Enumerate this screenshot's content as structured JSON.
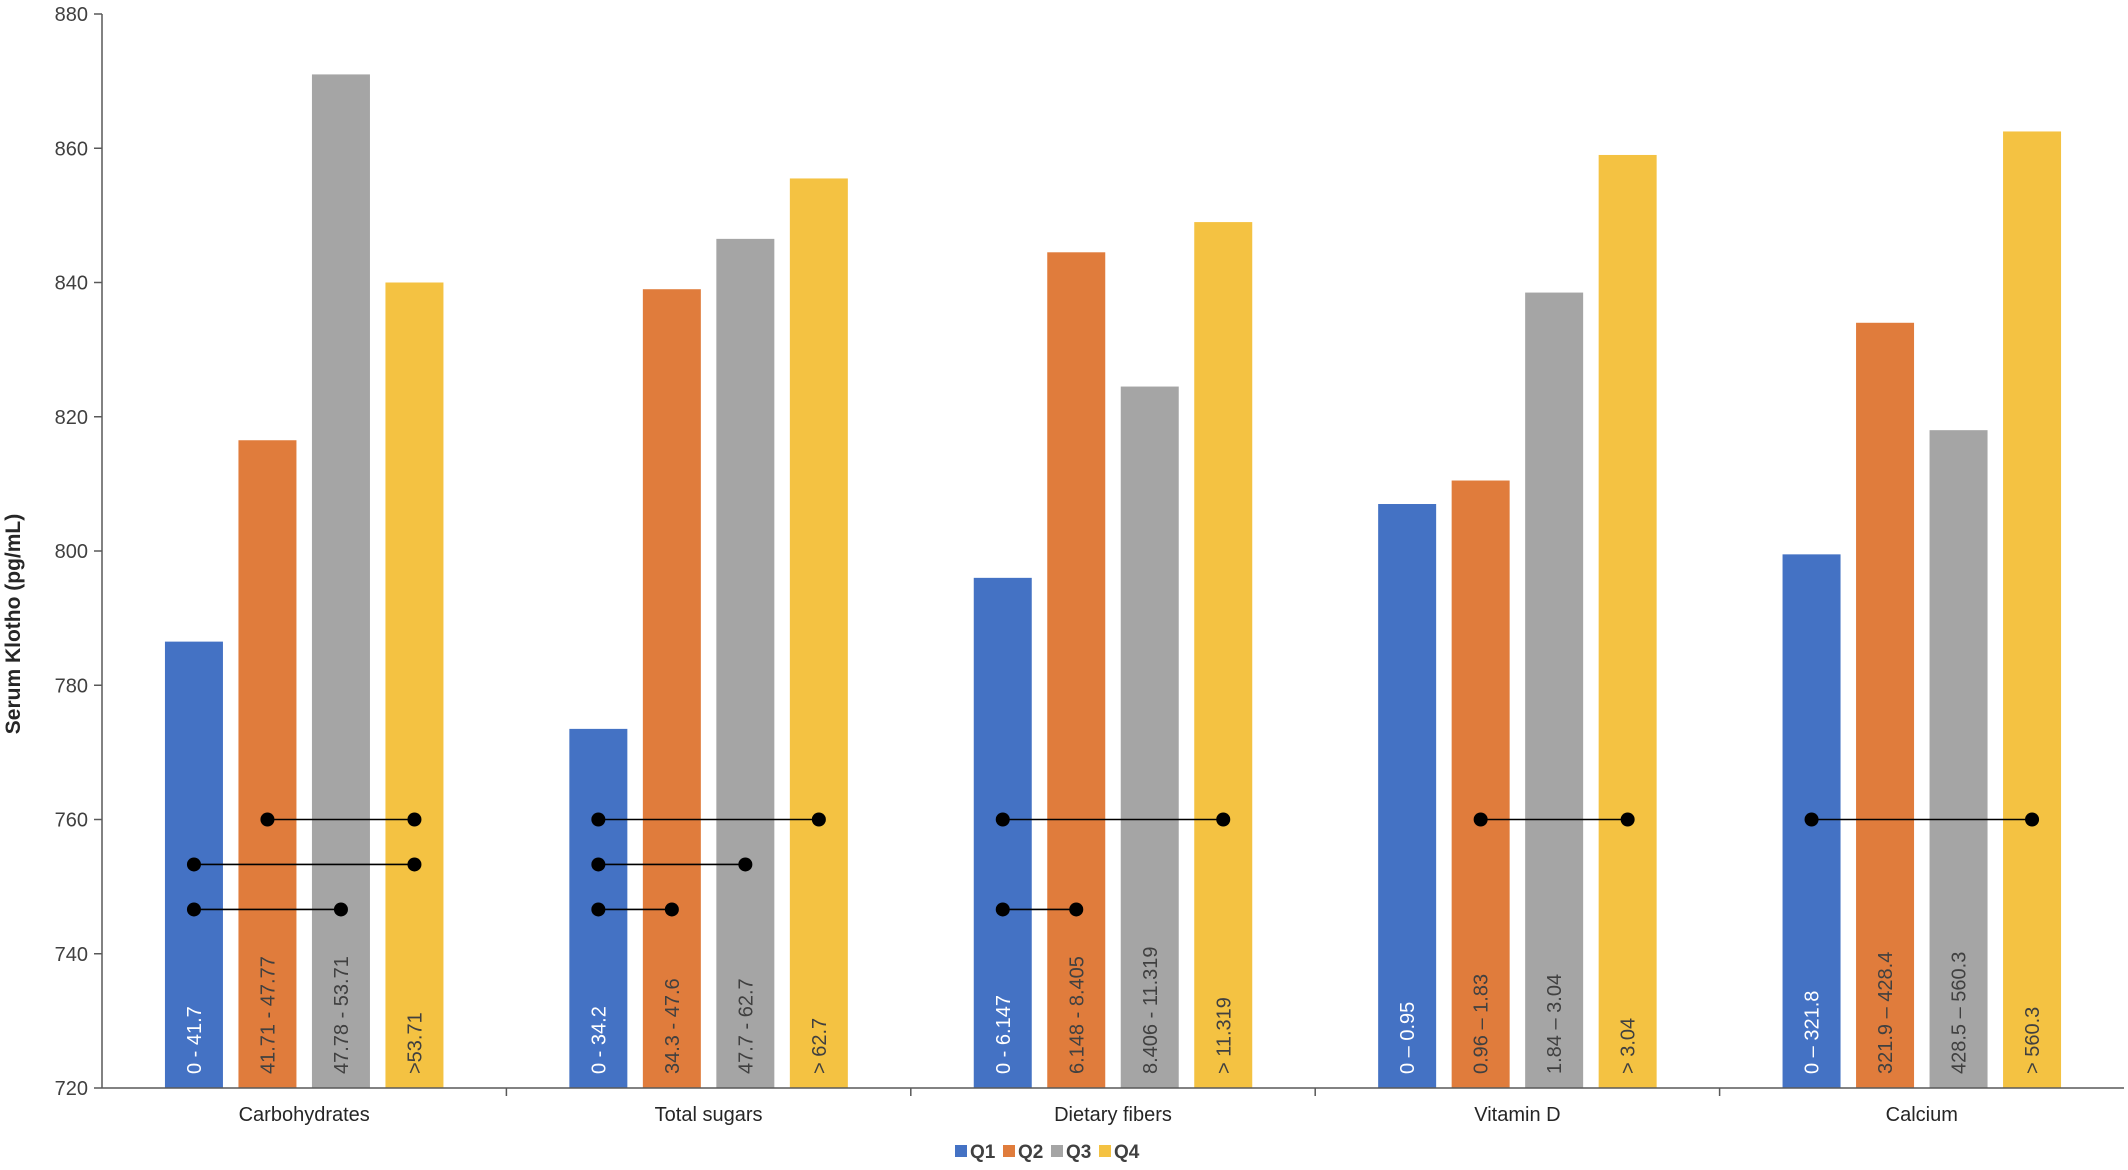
{
  "chart_data": {
    "type": "bar",
    "ylabel": "Serum Klotho (pg/mL)",
    "xlabel": "",
    "ylim": [
      720,
      880
    ],
    "yticks": [
      720,
      740,
      760,
      780,
      800,
      820,
      840,
      860,
      880
    ],
    "grid": false,
    "legend_position": "bottom-center",
    "categories": [
      "Carbohydrates",
      "Total sugars",
      "Dietary fibers",
      "Vitamin D",
      "Calcium"
    ],
    "series": [
      {
        "name": "Q1",
        "color": "#4472C4",
        "values": [
          786.5,
          773.5,
          796,
          807,
          799.5
        ],
        "range_labels": [
          "0 - 41.7",
          "0 - 34.2",
          "0 - 6.147",
          "0 – 0.95",
          "0 – 321.8"
        ]
      },
      {
        "name": "Q2",
        "color": "#E07C3C",
        "values": [
          816.5,
          839,
          844.5,
          810.5,
          834
        ],
        "range_labels": [
          "41.71 - 47.77",
          "34.3 - 47.6",
          "6.148 - 8.405",
          "0.96 – 1.83",
          "321.9 – 428.4"
        ]
      },
      {
        "name": "Q3",
        "color": "#A5A5A5",
        "values": [
          871,
          846.5,
          824.5,
          838.5,
          818
        ],
        "range_labels": [
          "47.78 - 53.71",
          "47.7 - 62.7",
          "8.406 - 11.319",
          "1.84 – 3.04",
          "428.5 – 560.3"
        ]
      },
      {
        "name": "Q4",
        "color": "#F4C242",
        "values": [
          840,
          855.5,
          849,
          859,
          862.5
        ],
        "range_labels": [
          ">53.71",
          "> 62.7",
          "> 11.319",
          "> 3.04",
          "> 560.3"
        ]
      }
    ],
    "label_colors": [
      "#ffffff",
      "#404040",
      "#404040",
      "#404040"
    ],
    "significance_brackets": [
      {
        "category": 0,
        "from": 1,
        "to": 3,
        "y": 760
      },
      {
        "category": 0,
        "from": 0,
        "to": 3,
        "y": 753.3
      },
      {
        "category": 0,
        "from": 0,
        "to": 2,
        "y": 746.6
      },
      {
        "category": 1,
        "from": 0,
        "to": 3,
        "y": 760
      },
      {
        "category": 1,
        "from": 0,
        "to": 2,
        "y": 753.3
      },
      {
        "category": 1,
        "from": 0,
        "to": 1,
        "y": 746.6
      },
      {
        "category": 2,
        "from": 0,
        "to": 3,
        "y": 760
      },
      {
        "category": 2,
        "from": 0,
        "to": 1,
        "y": 746.6
      },
      {
        "category": 3,
        "from": 1,
        "to": 3,
        "y": 760
      },
      {
        "category": 4,
        "from": 0,
        "to": 3,
        "y": 760
      }
    ]
  }
}
